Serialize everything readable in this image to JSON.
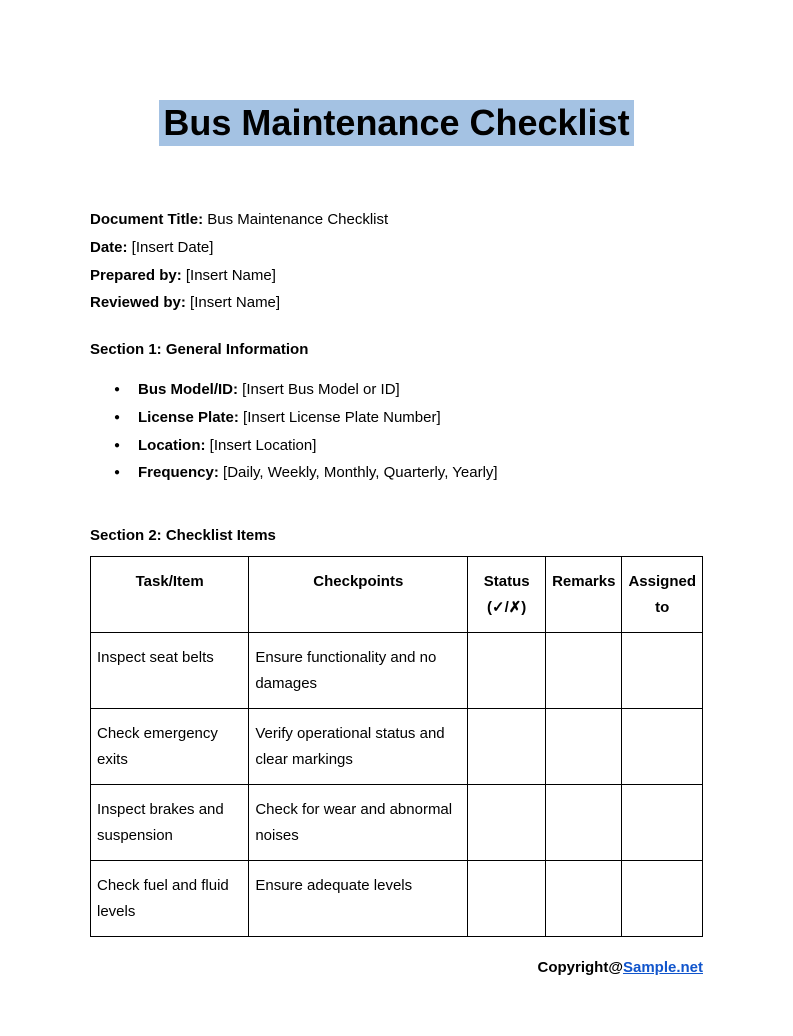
{
  "title": "Bus Maintenance Checklist",
  "meta": {
    "docTitleLabel": "Document Title:",
    "docTitleValue": " Bus Maintenance Checklist",
    "dateLabel": "Date:",
    "dateValue": " [Insert Date]",
    "preparedLabel": "Prepared by:",
    "preparedValue": " [Insert Name]",
    "reviewedLabel": "Reviewed by:",
    "reviewedValue": " [Insert Name]"
  },
  "section1": {
    "header": "Section 1: General Information",
    "items": [
      {
        "label": "Bus Model/ID:",
        "value": " [Insert Bus Model or ID]"
      },
      {
        "label": "License Plate:",
        "value": " [Insert License Plate Number]"
      },
      {
        "label": "Location:",
        "value": " [Insert Location]"
      },
      {
        "label": "Frequency:",
        "value": " [Daily, Weekly, Monthly, Quarterly, Yearly]"
      }
    ]
  },
  "section2": {
    "header": "Section 2: Checklist Items",
    "columns": {
      "task": "Task/Item",
      "checkpoints": "Checkpoints",
      "status": "Status (✓/✗)",
      "remarks": "Remarks",
      "assigned": "Assigned to"
    },
    "rows": [
      {
        "task": "Inspect seat belts",
        "checkpoints": "Ensure functionality and no damages",
        "status": "",
        "remarks": "",
        "assigned": ""
      },
      {
        "task": "Check emergency exits",
        "checkpoints": "Verify operational status and clear markings",
        "status": "",
        "remarks": "",
        "assigned": ""
      },
      {
        "task": "Inspect brakes and suspension",
        "checkpoints": "Check for wear and abnormal noises",
        "status": "",
        "remarks": "",
        "assigned": ""
      },
      {
        "task": "Check fuel and fluid levels",
        "checkpoints": "Ensure adequate levels",
        "status": "",
        "remarks": "",
        "assigned": ""
      }
    ]
  },
  "footer": {
    "prefix": "Copyright@",
    "linkText": "Sample.net"
  },
  "styling": {
    "titleBg": "#a4c2e3",
    "titleFontSize": 36,
    "bodyFontSize": 15,
    "textColor": "#000000",
    "linkColor": "#1155cc",
    "borderColor": "#000000",
    "backgroundColor": "#ffffff",
    "columnWidths": {
      "task": 159,
      "checkpoints": 220,
      "status": 78,
      "remarks": 74,
      "assigned": 74
    }
  }
}
